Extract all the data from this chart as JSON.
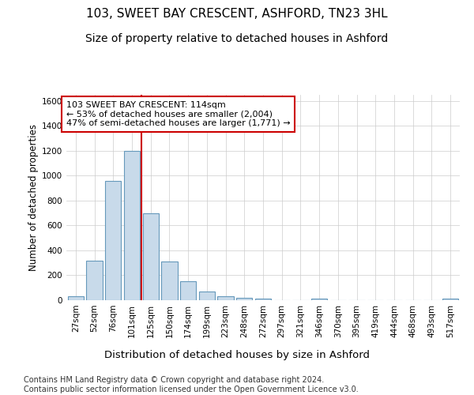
{
  "title1": "103, SWEET BAY CRESCENT, ASHFORD, TN23 3HL",
  "title2": "Size of property relative to detached houses in Ashford",
  "xlabel": "Distribution of detached houses by size in Ashford",
  "ylabel": "Number of detached properties",
  "footnote": "Contains HM Land Registry data © Crown copyright and database right 2024.\nContains public sector information licensed under the Open Government Licence v3.0.",
  "bin_labels": [
    "27sqm",
    "52sqm",
    "76sqm",
    "101sqm",
    "125sqm",
    "150sqm",
    "174sqm",
    "199sqm",
    "223sqm",
    "248sqm",
    "272sqm",
    "297sqm",
    "321sqm",
    "346sqm",
    "370sqm",
    "395sqm",
    "419sqm",
    "444sqm",
    "468sqm",
    "493sqm",
    "517sqm"
  ],
  "bar_values": [
    30,
    320,
    960,
    1200,
    700,
    310,
    150,
    70,
    30,
    20,
    10,
    0,
    0,
    15,
    0,
    0,
    0,
    0,
    0,
    0,
    15
  ],
  "bar_color": "#c8daea",
  "bar_edgecolor": "#6699bb",
  "vline_x": 3.5,
  "vline_color": "#cc0000",
  "annotation_text": "103 SWEET BAY CRESCENT: 114sqm\n← 53% of detached houses are smaller (2,004)\n47% of semi-detached houses are larger (1,771) →",
  "annotation_box_color": "#ffffff",
  "annotation_box_edgecolor": "#cc0000",
  "ylim": [
    0,
    1650
  ],
  "yticks": [
    0,
    200,
    400,
    600,
    800,
    1000,
    1200,
    1400,
    1600
  ],
  "bg_color": "#ffffff",
  "plot_bg_color": "#ffffff",
  "grid_color": "#cccccc",
  "title1_fontsize": 11,
  "title2_fontsize": 10,
  "xlabel_fontsize": 9.5,
  "ylabel_fontsize": 8.5,
  "tick_fontsize": 7.5,
  "annotation_fontsize": 8,
  "footnote_fontsize": 7
}
